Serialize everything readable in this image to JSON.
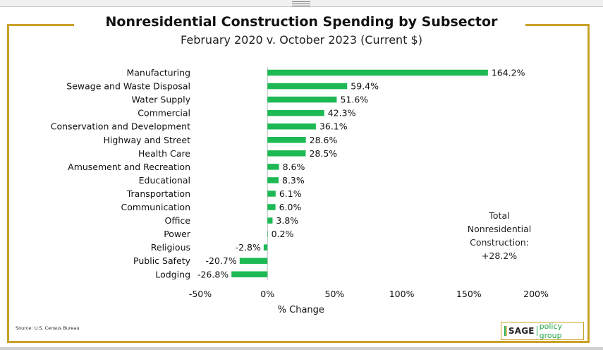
{
  "chart_data": {
    "type": "bar",
    "orientation": "horizontal",
    "title": "Nonresidential Construction Spending by Subsector",
    "subtitle": "February 2020 v. October 2023 (Current $)",
    "xlabel": "% Change",
    "ylabel": "",
    "xlim": [
      -50,
      200
    ],
    "xticks": [
      -50,
      0,
      50,
      100,
      150,
      200
    ],
    "xtick_labels": [
      "-50%",
      "0%",
      "50%",
      "100%",
      "150%",
      "200%"
    ],
    "grid": false,
    "legend": "none",
    "bar_color": "#1db954",
    "categories": [
      "Manufacturing",
      "Sewage and Waste Disposal",
      "Water Supply",
      "Commercial",
      "Conservation and Development",
      "Highway and Street",
      "Health Care",
      "Amusement and Recreation",
      "Educational",
      "Transportation",
      "Communication",
      "Office",
      "Power",
      "Religious",
      "Public Safety",
      "Lodging"
    ],
    "values": [
      164.2,
      59.4,
      51.6,
      42.3,
      36.1,
      28.6,
      28.5,
      8.6,
      8.3,
      6.1,
      6.0,
      3.8,
      0.2,
      -2.8,
      -20.7,
      -26.8
    ],
    "value_labels": [
      "164.2%",
      "59.4%",
      "51.6%",
      "42.3%",
      "36.1%",
      "28.6%",
      "28.5%",
      "8.6%",
      "8.3%",
      "6.1%",
      "6.0%",
      "3.8%",
      "0.2%",
      "-2.8%",
      "-20.7%",
      "-26.8%"
    ],
    "annotations": [
      "Total",
      "Nonresidential",
      "Construction:",
      "+28.2%"
    ]
  },
  "note": {
    "line1": "Total",
    "line2": "Nonresidential",
    "line3": "Construction:",
    "line4": "+28.2%"
  },
  "source": "Source: U.S. Census Bureau",
  "logo": {
    "brand": "SAGE",
    "tagline": "policy group"
  },
  "colors": {
    "frame": "#c9a227",
    "bar": "#1db954",
    "logo_accent": "#27a84a"
  }
}
